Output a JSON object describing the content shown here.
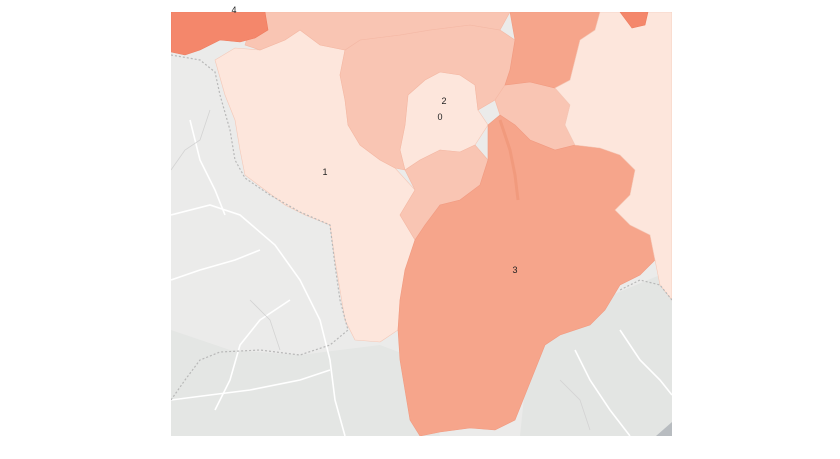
{
  "map": {
    "base_color": "#ebebea",
    "road_color": "#ffffff",
    "border_color": "#b8b8b8",
    "region_labels": [
      "1",
      "2",
      "0",
      "3",
      "4"
    ],
    "choropleth_colors": {
      "lightest": "#fde6dc",
      "light": "#f9c5b3",
      "medium": "#f6a58b",
      "dark": "#f4876b"
    }
  }
}
